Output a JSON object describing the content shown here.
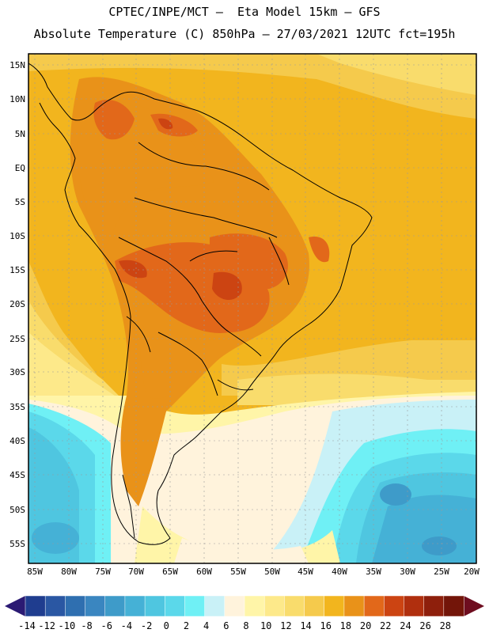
{
  "header": {
    "line1": "CPTEC/INPE/MCT –  Eta Model 15km – GFS",
    "line2": "Absolute Temperature (C) 850hPa – 27/03/2021 12UTC fct=195h"
  },
  "map": {
    "lat_labels": [
      "15N",
      "10N",
      "5N",
      "EQ",
      "5S",
      "10S",
      "15S",
      "20S",
      "25S",
      "30S",
      "35S",
      "40S",
      "45S",
      "50S",
      "55S"
    ],
    "lon_labels": [
      "85W",
      "80W",
      "75W",
      "70W",
      "65W",
      "60W",
      "55W",
      "50W",
      "45W",
      "40W",
      "35W",
      "30W",
      "25W",
      "20W"
    ]
  },
  "colorbar": {
    "labels": [
      "-14",
      "-12",
      "-10",
      "-8",
      "-6",
      "-4",
      "-2",
      "0",
      "2",
      "4",
      "6",
      "8",
      "10",
      "12",
      "14",
      "16",
      "18",
      "20",
      "22",
      "24",
      "26",
      "28"
    ],
    "colors": [
      "#1f3d8f",
      "#2a57a3",
      "#2f6fb0",
      "#3a86c0",
      "#3e9bc9",
      "#45b1d6",
      "#4fc6e0",
      "#5bd8ea",
      "#6ff0f5",
      "#c9f1f7",
      "#fff3dc",
      "#fff5a8",
      "#fde98a",
      "#f9dc6c",
      "#f5ca4c",
      "#f2b51e",
      "#e99219",
      "#e2681a",
      "#cc4412",
      "#b02f0e",
      "#8e1f0c",
      "#731509"
    ],
    "left_arrow": "#2b1a73",
    "right_arrow": "#6e0d1f"
  }
}
